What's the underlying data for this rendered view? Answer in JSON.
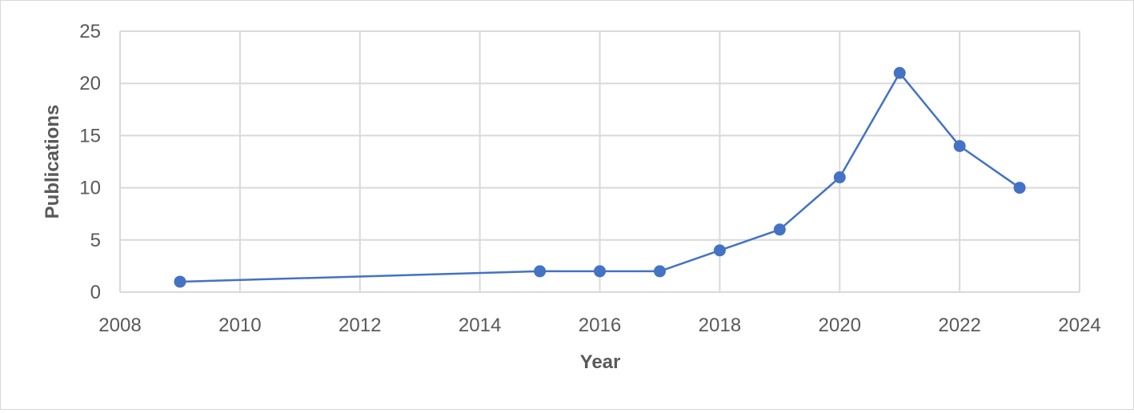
{
  "chart_data": {
    "type": "scatter",
    "mode": "lines+markers",
    "xlabel": "Year",
    "ylabel": "Publications",
    "xlim": [
      2008,
      2024
    ],
    "ylim": [
      0,
      25
    ],
    "xticks": [
      2008,
      2010,
      2012,
      2014,
      2016,
      2018,
      2020,
      2022,
      2024
    ],
    "yticks": [
      0,
      5,
      10,
      15,
      20,
      25
    ],
    "grid": true,
    "legend": "none",
    "series": [
      {
        "color": "#4472c4",
        "points": [
          {
            "x": 2009,
            "y": 1
          },
          {
            "x": 2015,
            "y": 2
          },
          {
            "x": 2016,
            "y": 2
          },
          {
            "x": 2017,
            "y": 2
          },
          {
            "x": 2018,
            "y": 4
          },
          {
            "x": 2019,
            "y": 6
          },
          {
            "x": 2020,
            "y": 11
          },
          {
            "x": 2021,
            "y": 21
          },
          {
            "x": 2022,
            "y": 14
          },
          {
            "x": 2023,
            "y": 10
          }
        ]
      }
    ],
    "colors": {
      "gridline": "#d9d9d9",
      "text": "#595959"
    }
  }
}
